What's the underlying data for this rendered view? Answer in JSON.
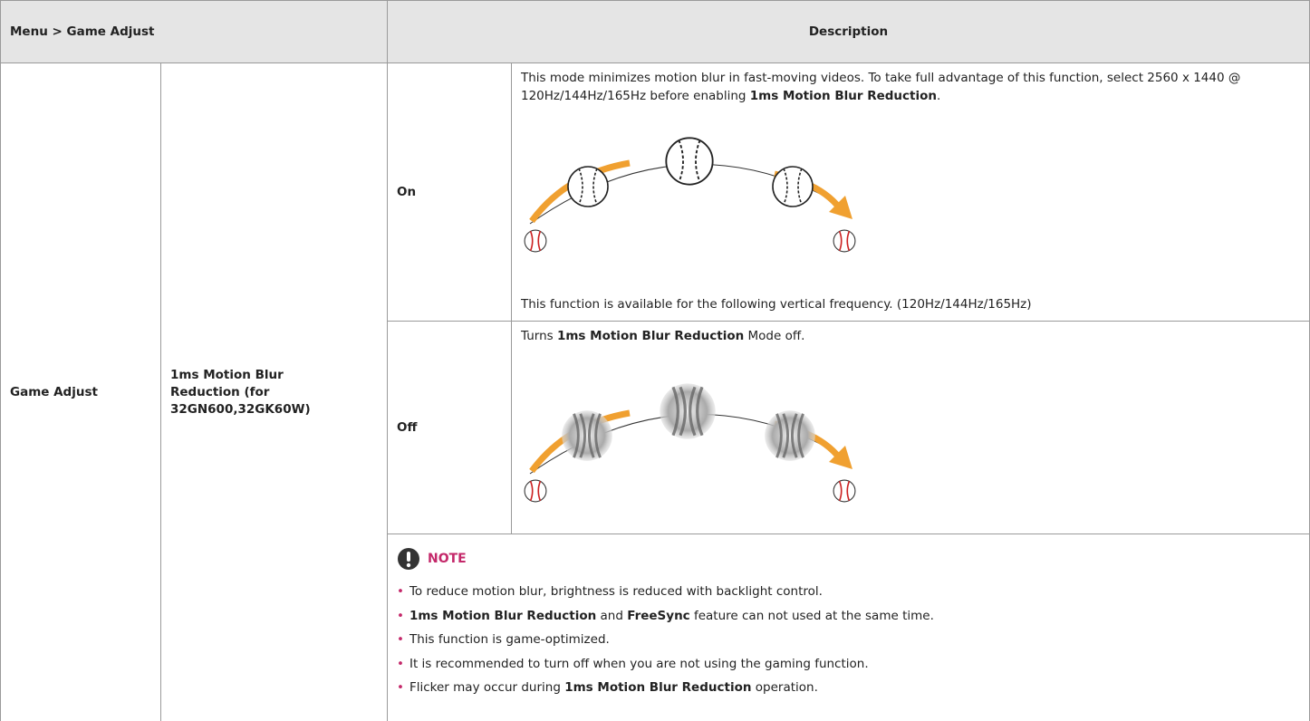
{
  "header": {
    "menu": "Menu > Game Adjust",
    "description": "Description"
  },
  "menu_item": "Game Adjust",
  "setting": "1ms Motion Blur Reduction (for 32GN600,32GK60W)",
  "options": [
    {
      "label": "On",
      "paragraphs": [
        [
          {
            "text": "This mode minimizes motion blur in fast-moving videos. To take full advantage of this function, select 2560 x 1440 @ 120Hz/144Hz/165Hz before enabling ",
            "bold": false
          },
          {
            "text": "1ms Motion Blur Reduction",
            "bold": true
          },
          {
            "text": ".",
            "bold": false
          }
        ],
        [
          {
            "text": "This function is available for the following vertical frequency. (120Hz/144Hz/165Hz)",
            "bold": false
          }
        ]
      ]
    },
    {
      "label": "Off",
      "paragraphs": [
        [
          {
            "text": "Turns ",
            "bold": false
          },
          {
            "text": "1ms Motion Blur Reduction",
            "bold": true
          },
          {
            "text": " Mode off.",
            "bold": false
          }
        ]
      ]
    }
  ],
  "note": {
    "title": "NOTE",
    "items": [
      [
        {
          "text": "To reduce motion blur, brightness is reduced with backlight control.",
          "bold": false
        }
      ],
      [
        {
          "text": "1ms Motion Blur Reduction",
          "bold": true
        },
        {
          "text": " and ",
          "bold": false
        },
        {
          "text": "FreeSync",
          "bold": true
        },
        {
          "text": " feature can not used at the same time.",
          "bold": false
        }
      ],
      [
        {
          "text": "This function is game-optimized.",
          "bold": false
        }
      ],
      [
        {
          "text": "It is recommended to turn off when you are not using the gaming function.",
          "bold": false
        }
      ],
      [
        {
          "text": "Flicker may occur during ",
          "bold": false
        },
        {
          "text": "1ms Motion Blur Reduction",
          "bold": true
        },
        {
          "text": " operation.",
          "bold": false
        }
      ]
    ]
  }
}
